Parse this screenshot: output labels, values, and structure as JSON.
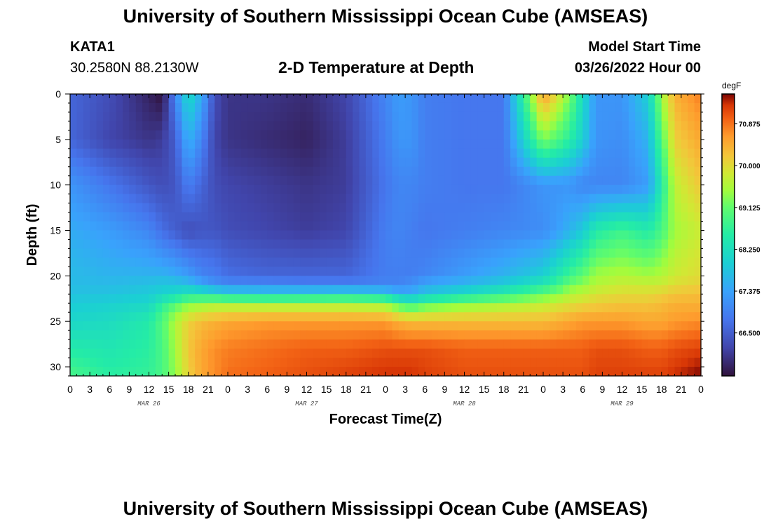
{
  "header": {
    "title": "University of Southern Mississippi Ocean Cube (AMSEAS)",
    "station": "KATA1",
    "coordinates": "30.2580N  88.2130W",
    "plot_title": "2-D Temperature at Depth",
    "model_label": "Model Start Time",
    "model_time": "03/26/2022 Hour 00"
  },
  "footer": {
    "title": "University of Southern Mississippi Ocean Cube (AMSEAS)"
  },
  "chart_data": {
    "type": "heatmap",
    "title": "2-D Temperature at Depth",
    "xlabel": "Forecast Time(Z)",
    "ylabel": "Depth (ft)",
    "x_hours_range": [
      0,
      96
    ],
    "ylim": [
      0,
      31
    ],
    "y_inverted": true,
    "x_tick_labels": [
      "0",
      "3",
      "6",
      "9",
      "12",
      "15",
      "18",
      "21",
      "0",
      "3",
      "6",
      "9",
      "12",
      "15",
      "18",
      "21",
      "0",
      "3",
      "6",
      "9",
      "12",
      "15",
      "18",
      "21",
      "0",
      "3",
      "6",
      "9",
      "12",
      "15",
      "18",
      "21",
      "0"
    ],
    "date_labels": [
      {
        "label": "MAR 26",
        "hour": 12
      },
      {
        "label": "MAR 27",
        "hour": 36
      },
      {
        "label": "MAR 28",
        "hour": 60
      },
      {
        "label": "MAR 29",
        "hour": 84
      }
    ],
    "y_ticks": [
      0,
      5,
      10,
      15,
      20,
      25,
      30
    ],
    "colorbar": {
      "unit": "degF",
      "min": 65.6,
      "max": 71.5,
      "tick_values": [
        66.5,
        67.375,
        68.25,
        69.125,
        70.0,
        70.875
      ],
      "tick_labels": [
        "66.500",
        "67.375",
        "68.250",
        "69.125",
        "70.000",
        "70.875"
      ]
    },
    "grid": false,
    "depths_ft": [
      0,
      5,
      10,
      15,
      20,
      21,
      22,
      23,
      25,
      28,
      31
    ],
    "times_h": [
      0,
      6,
      12,
      14,
      16,
      18,
      20,
      22,
      24,
      30,
      36,
      42,
      48,
      50,
      52,
      54,
      60,
      66,
      72,
      74,
      76,
      78,
      80,
      84,
      88,
      90,
      92,
      96
    ],
    "values_degF": [
      [
        66.6,
        66.3,
        65.8,
        65.6,
        67.0,
        68.2,
        67.5,
        66.3,
        66.0,
        66.0,
        65.9,
        66.2,
        67.0,
        67.3,
        67.2,
        66.9,
        66.8,
        66.8,
        70.6,
        70.0,
        69.3,
        68.2,
        67.2,
        67.2,
        68.0,
        69.5,
        70.4,
        70.8
      ],
      [
        66.6,
        66.2,
        66.0,
        66.1,
        66.5,
        67.6,
        67.0,
        66.2,
        66.0,
        65.9,
        65.8,
        66.1,
        66.9,
        67.2,
        67.2,
        66.9,
        66.8,
        66.8,
        69.3,
        69.0,
        68.6,
        68.0,
        67.2,
        67.1,
        67.6,
        69.0,
        70.1,
        70.5
      ],
      [
        67.2,
        66.8,
        66.4,
        66.3,
        66.4,
        66.9,
        66.6,
        66.3,
        66.2,
        66.1,
        66.0,
        66.1,
        66.8,
        67.0,
        67.0,
        66.9,
        66.8,
        66.8,
        67.2,
        67.2,
        67.2,
        67.0,
        67.0,
        67.0,
        67.3,
        68.5,
        69.7,
        70.2
      ],
      [
        67.5,
        67.3,
        67.0,
        66.7,
        66.5,
        66.3,
        66.4,
        66.4,
        66.3,
        66.2,
        66.1,
        66.2,
        66.9,
        67.0,
        66.9,
        66.8,
        66.9,
        67.0,
        67.1,
        67.3,
        67.6,
        67.9,
        68.5,
        68.8,
        68.5,
        68.9,
        69.5,
        69.8
      ],
      [
        67.7,
        67.6,
        67.6,
        67.6,
        67.5,
        67.3,
        67.0,
        66.9,
        66.7,
        66.6,
        66.6,
        66.6,
        66.9,
        66.9,
        66.9,
        67.0,
        67.3,
        67.6,
        68.0,
        68.4,
        68.8,
        69.1,
        69.5,
        69.6,
        69.5,
        69.6,
        69.8,
        70.0
      ],
      [
        67.7,
        67.7,
        67.8,
        67.9,
        67.9,
        67.8,
        67.5,
        67.2,
        67.1,
        67.1,
        67.0,
        67.0,
        67.0,
        67.0,
        67.2,
        67.5,
        67.7,
        68.0,
        68.5,
        68.8,
        69.2,
        69.4,
        69.6,
        69.8,
        69.8,
        69.8,
        70.0,
        70.1
      ],
      [
        67.8,
        67.8,
        67.9,
        68.0,
        68.1,
        68.4,
        68.4,
        68.3,
        68.1,
        68.0,
        68.1,
        68.2,
        68.0,
        67.6,
        67.5,
        67.8,
        68.2,
        68.6,
        69.1,
        69.3,
        69.6,
        69.7,
        69.9,
        70.0,
        70.0,
        70.1,
        70.2,
        70.3
      ],
      [
        67.9,
        68.0,
        68.1,
        68.6,
        69.0,
        69.3,
        69.4,
        69.5,
        69.5,
        69.5,
        69.5,
        69.5,
        69.4,
        68.9,
        68.7,
        69.0,
        69.3,
        69.5,
        69.7,
        69.8,
        69.9,
        70.0,
        70.1,
        70.2,
        70.2,
        70.3,
        70.4,
        70.4
      ],
      [
        68.1,
        68.2,
        68.5,
        69.0,
        69.6,
        70.1,
        70.3,
        70.4,
        70.5,
        70.6,
        70.6,
        70.6,
        70.6,
        70.4,
        70.3,
        70.3,
        70.3,
        70.3,
        70.3,
        70.4,
        70.5,
        70.6,
        70.6,
        70.6,
        70.5,
        70.5,
        70.6,
        70.7
      ],
      [
        68.5,
        68.4,
        68.6,
        68.9,
        69.5,
        70.2,
        70.5,
        70.7,
        70.8,
        70.9,
        71.0,
        71.0,
        71.1,
        71.1,
        71.1,
        71.1,
        71.0,
        71.0,
        71.0,
        71.0,
        71.0,
        71.0,
        71.1,
        71.1,
        71.0,
        71.0,
        71.1,
        71.2
      ],
      [
        68.9,
        68.6,
        68.7,
        68.9,
        69.4,
        70.1,
        70.5,
        70.7,
        70.9,
        71.0,
        71.1,
        71.2,
        71.3,
        71.3,
        71.3,
        71.2,
        71.1,
        71.1,
        71.1,
        71.1,
        71.1,
        71.1,
        71.2,
        71.2,
        71.2,
        71.2,
        71.3,
        71.5
      ]
    ]
  }
}
